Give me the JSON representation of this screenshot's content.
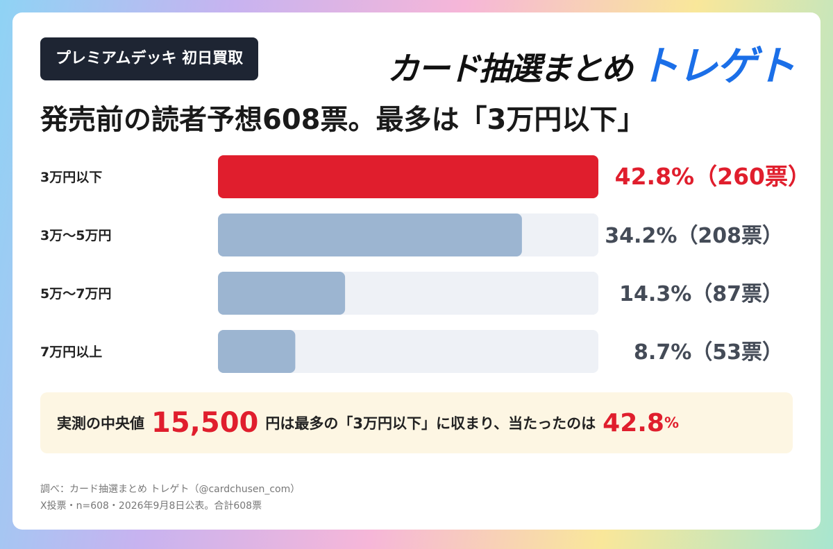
{
  "tag": "プレミアムデッキ 初日買取",
  "brand": {
    "main": "カード抽選まとめ",
    "accent": "トレゲト",
    "accent_color": "#1b6fe8"
  },
  "headline": "発売前の読者予想608票。最多は「3万円以下」",
  "chart_data": {
    "type": "bar",
    "orientation": "horizontal",
    "categories": [
      "3万円以下",
      "3万〜5万円",
      "5万〜7万円",
      "7万円以上"
    ],
    "values": [
      42.8,
      34.2,
      14.3,
      8.7
    ],
    "votes": [
      260,
      208,
      87,
      53
    ],
    "value_labels": [
      "42.8%（260票）",
      "34.2%（208票）",
      "14.3%（87票）",
      "8.7%（53票）"
    ],
    "xlim": [
      0,
      42.8
    ],
    "highlight_index": 0,
    "colors": {
      "highlight": "#e01e2d",
      "bar": "#9cb5d1",
      "track": "#eef1f6",
      "highlight_label": "#e01e2d",
      "label": "#444b57"
    }
  },
  "note": {
    "prefix": "実測の中央値",
    "median": "15,500",
    "middle": "円は最多の「3万円以下」に収まり、当たったのは",
    "hit": "42.8",
    "unit": "%"
  },
  "footer": {
    "line1": "調べ：カード抽選まとめ トレゲト（@cardchusen_com）",
    "line2": "X投票・n=608・2026年9月8日公表。合計608票"
  }
}
